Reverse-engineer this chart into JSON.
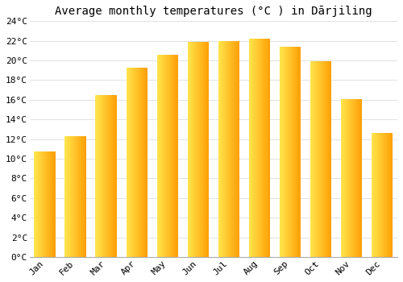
{
  "months": [
    "Jan",
    "Feb",
    "Mar",
    "Apr",
    "May",
    "Jun",
    "Jul",
    "Aug",
    "Sep",
    "Oct",
    "Nov",
    "Dec"
  ],
  "temperatures": [
    10.7,
    12.3,
    16.5,
    19.3,
    20.6,
    21.9,
    22.0,
    22.2,
    21.4,
    19.9,
    16.1,
    12.6
  ],
  "title": "Average monthly temperatures (°C ) in Dārjiling",
  "bar_color_left": "#FFE066",
  "bar_color_right": "#FFA000",
  "background_color": "#FFFFFF",
  "plot_bg_color": "#FFFFFF",
  "grid_color": "#DDDDDD",
  "spine_color": "#AAAAAA",
  "ylim": [
    0,
    24
  ],
  "yticks": [
    0,
    2,
    4,
    6,
    8,
    10,
    12,
    14,
    16,
    18,
    20,
    22,
    24
  ],
  "title_fontsize": 10,
  "tick_fontsize": 8,
  "font_family": "monospace",
  "bar_width": 0.7,
  "gradient_segments": 80
}
